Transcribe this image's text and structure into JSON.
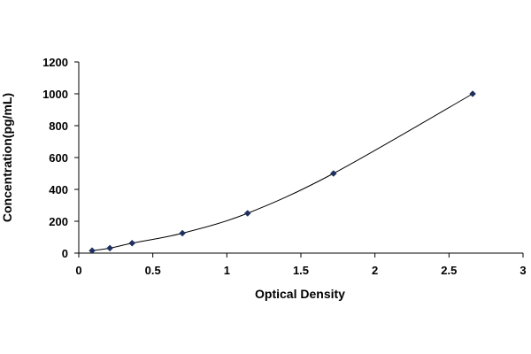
{
  "chart_data": {
    "type": "scatter",
    "title": "",
    "xlabel": "Optical Density",
    "ylabel": "Concentration(pg/mL)",
    "xlim": [
      0,
      3
    ],
    "ylim": [
      0,
      1200
    ],
    "x_ticks": [
      "0",
      "0.5",
      "1",
      "1.5",
      "2",
      "2.5",
      "3"
    ],
    "y_ticks": [
      "0",
      "200",
      "400",
      "600",
      "800",
      "1000",
      "1200"
    ],
    "grid": false,
    "legend": "none",
    "trendline": "smooth curve through points",
    "series": [
      {
        "marker": "diamond",
        "color": "#1f2f5f",
        "points": [
          {
            "x": 0.09,
            "y": 15.6
          },
          {
            "x": 0.21,
            "y": 31.2
          },
          {
            "x": 0.36,
            "y": 62.5
          },
          {
            "x": 0.7,
            "y": 125
          },
          {
            "x": 1.14,
            "y": 250
          },
          {
            "x": 1.72,
            "y": 500
          },
          {
            "x": 2.66,
            "y": 1000
          }
        ]
      }
    ]
  }
}
